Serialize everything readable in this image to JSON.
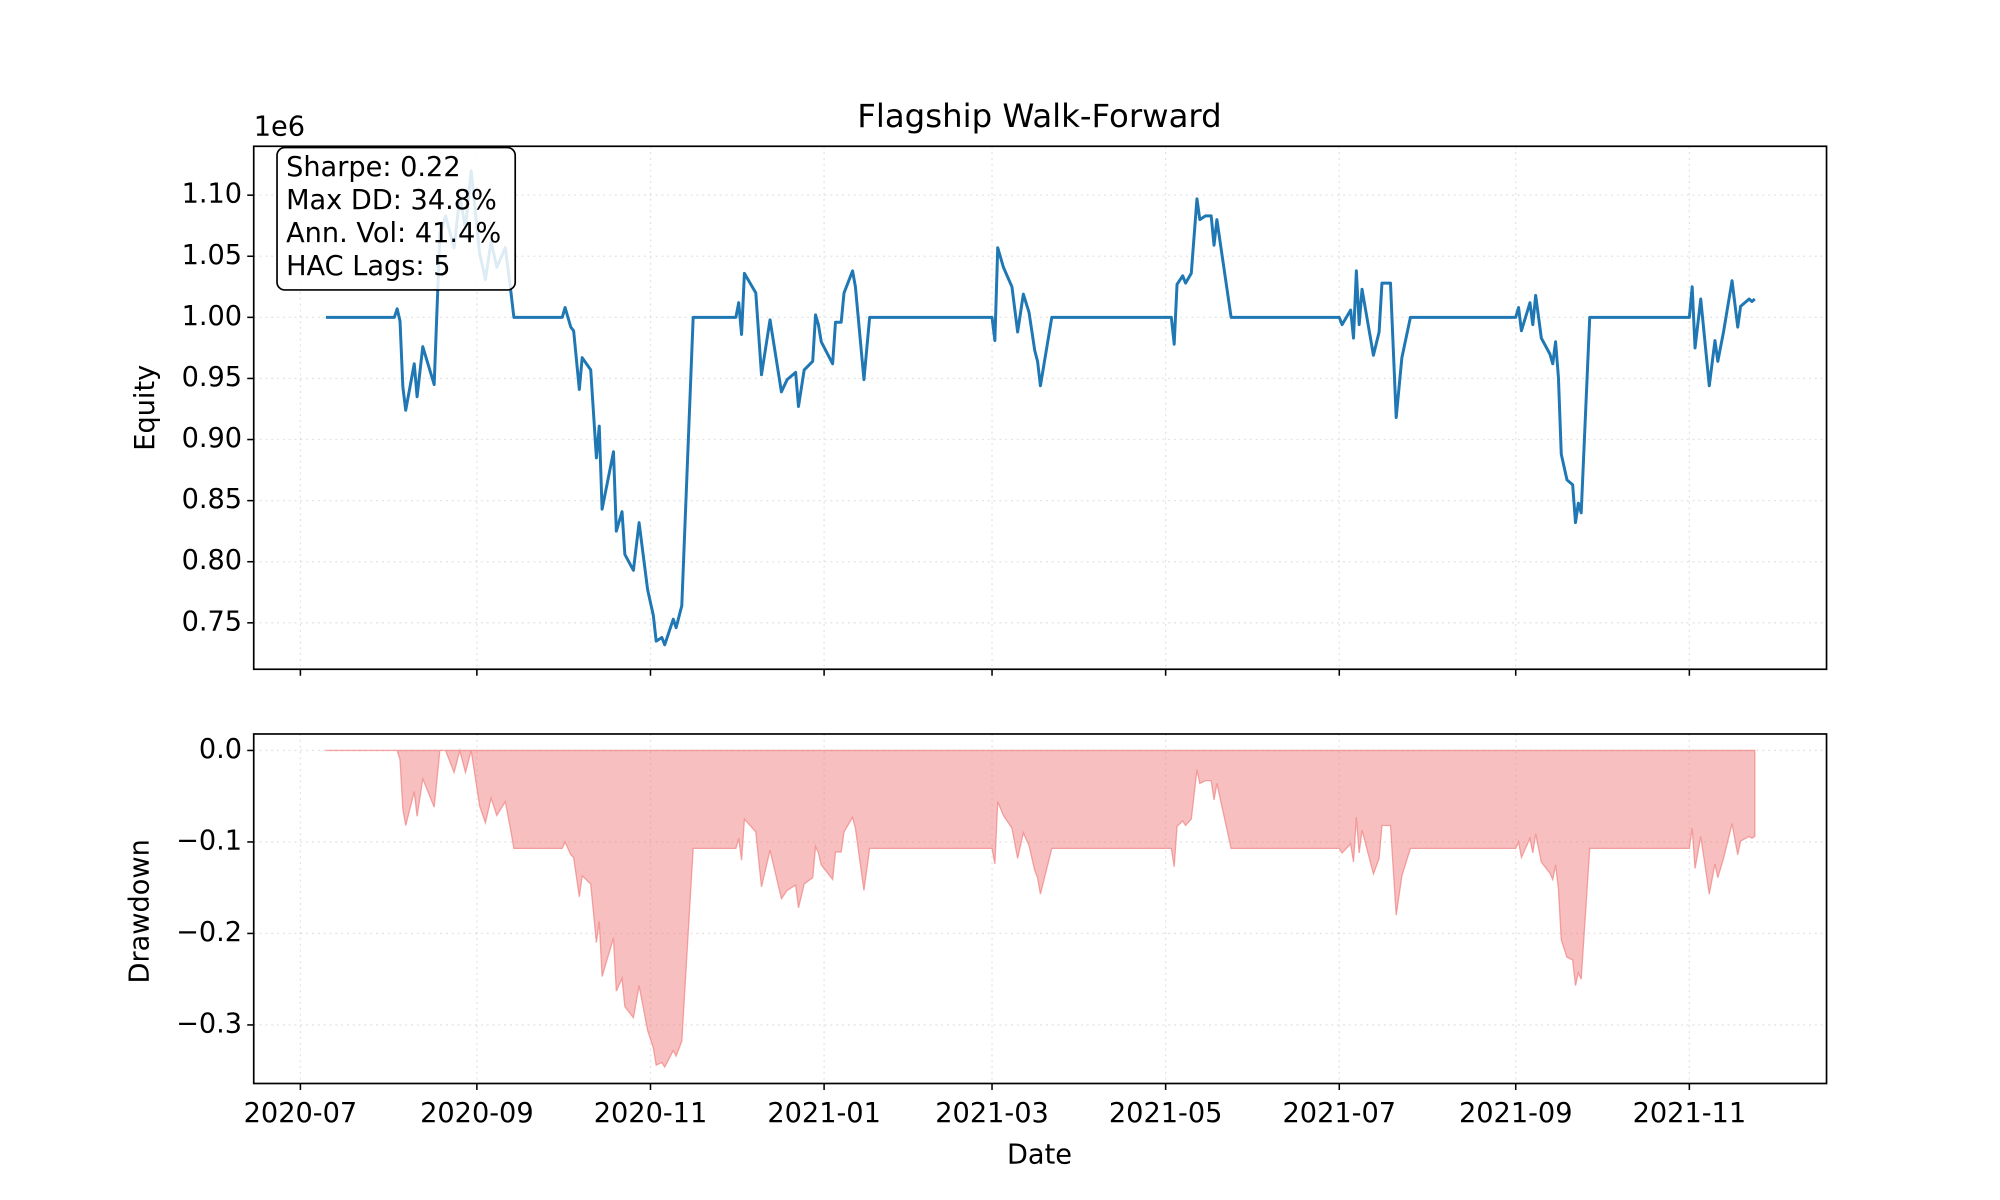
{
  "chart_data": [
    {
      "type": "line",
      "title": "Flagship Walk-Forward",
      "y_label": "Equity",
      "y_offset_label": "1e6",
      "color": "#1f77b4",
      "grid": true,
      "annotation": [
        "Sharpe: 0.22",
        "Max DD: 34.8%",
        "Ann. Vol: 41.4%",
        "HAC Lags: 5"
      ],
      "ylim": [
        0.712,
        1.14
      ],
      "yticks": [
        0.75,
        {
          "value": 0.8,
          "label": "0.80"
        },
        0.85,
        {
          "value": 0.9,
          "label": "0.90"
        },
        0.95,
        {
          "value": 1,
          "label": "1.00"
        },
        1.05,
        {
          "value": 1.1,
          "label": "1.10"
        }
      ],
      "x": [
        18453,
        18477,
        18478,
        18479,
        18480,
        18481,
        18484,
        18485,
        18487,
        18491,
        18493,
        18495,
        18498,
        18500,
        18502,
        18504,
        18507,
        18509,
        18511,
        18513,
        18516,
        18518,
        18519,
        18536,
        18537,
        18539,
        18540,
        18542,
        18543,
        18546,
        18548,
        18549,
        18550,
        18554,
        18555,
        18557,
        18558,
        18561,
        18563,
        18566,
        18568,
        18569,
        18571,
        18572,
        18575,
        18576,
        18578,
        18582,
        18597,
        18598,
        18599,
        18600,
        18604,
        18606,
        18609,
        18613,
        18615,
        18618,
        18619,
        18621,
        18624,
        18625,
        18626,
        18627,
        18631,
        18632,
        18634,
        18635,
        18638,
        18639,
        18642,
        18644,
        18687,
        18688,
        18689,
        18691,
        18694,
        18696,
        18698,
        18700,
        18702,
        18703,
        18704,
        18708,
        18750,
        18751,
        18752,
        18754,
        18755,
        18757,
        18759,
        18760,
        18762,
        18764,
        18765,
        18766,
        18771,
        18809,
        18810,
        18813,
        18814,
        18815,
        18816,
        18817,
        18819,
        18821,
        18823,
        18824,
        18827,
        18829,
        18831,
        18834,
        18871,
        18872,
        18873,
        18876,
        18877,
        18878,
        18880,
        18883,
        18884,
        18885,
        18886,
        18887,
        18889,
        18891,
        18892,
        18893,
        18894,
        18897,
        18932,
        18933,
        18934,
        18936,
        18939,
        18941,
        18942,
        18944,
        18947,
        18949,
        18950,
        18953,
        18954,
        18955
      ],
      "values": [
        1.0,
        1.0,
        1.007,
        0.997,
        0.943,
        0.924,
        0.962,
        0.935,
        0.976,
        0.945,
        1.068,
        1.083,
        1.057,
        1.099,
        1.073,
        1.12,
        1.052,
        1.031,
        1.062,
        1.041,
        1.057,
        1.02,
        1.0,
        1.0,
        1.008,
        0.992,
        0.989,
        0.941,
        0.967,
        0.957,
        0.885,
        0.911,
        0.843,
        0.89,
        0.825,
        0.841,
        0.806,
        0.793,
        0.832,
        0.777,
        0.756,
        0.735,
        0.738,
        0.732,
        0.753,
        0.746,
        0.764,
        1.0,
        1.0,
        1.012,
        0.986,
        1.036,
        1.02,
        0.953,
        0.998,
        0.939,
        0.949,
        0.955,
        0.927,
        0.957,
        0.964,
        1.002,
        0.994,
        0.98,
        0.962,
        0.996,
        0.996,
        1.02,
        1.038,
        1.025,
        0.949,
        1.0,
        1.0,
        0.981,
        1.057,
        1.041,
        1.025,
        0.988,
        1.019,
        1.004,
        0.973,
        0.964,
        0.944,
        1.0,
        1.0,
        0.978,
        1.027,
        1.034,
        1.028,
        1.036,
        1.097,
        1.08,
        1.083,
        1.083,
        1.059,
        1.08,
        1.0,
        1.0,
        0.994,
        1.006,
        0.983,
        1.038,
        0.994,
        1.023,
        0.996,
        0.969,
        0.988,
        1.028,
        1.028,
        0.918,
        0.967,
        1.0,
        1.0,
        1.008,
        0.989,
        1.012,
        0.994,
        1.018,
        0.983,
        0.97,
        0.962,
        0.98,
        0.951,
        0.888,
        0.867,
        0.863,
        0.832,
        0.848,
        0.84,
        1.0,
        1.0,
        1.025,
        0.975,
        1.015,
        0.944,
        0.981,
        0.964,
        0.988,
        1.03,
        0.992,
        1.009,
        1.015,
        1.013,
        1.015
      ]
    },
    {
      "type": "area",
      "y_label": "Drawdown",
      "x_label": "Date",
      "color": "#f08080",
      "opacity": 0.5,
      "grid": true,
      "ylim": [
        -0.364,
        0.018
      ],
      "yticks": [
        {
          "value": -0.3,
          "label": "−0.3"
        },
        {
          "value": -0.2,
          "label": "−0.2"
        },
        {
          "value": -0.1,
          "label": "−0.1"
        },
        {
          "value": 0,
          "label": "0.0"
        }
      ],
      "xlim": [
        18427.6,
        18980.2
      ],
      "xticks": [
        {
          "value": 18444,
          "label": "2020-07"
        },
        {
          "value": 18506,
          "label": "2020-09"
        },
        {
          "value": 18567,
          "label": "2020-11"
        },
        {
          "value": 18628,
          "label": "2021-01"
        },
        {
          "value": 18687,
          "label": "2021-03"
        },
        {
          "value": 18748,
          "label": "2021-05"
        },
        {
          "value": 18809,
          "label": "2021-07"
        },
        {
          "value": 18871,
          "label": "2021-09"
        },
        {
          "value": 18932,
          "label": "2021-11"
        }
      ],
      "x": [
        18453,
        18477,
        18478,
        18479,
        18480,
        18481,
        18484,
        18485,
        18487,
        18491,
        18493,
        18495,
        18498,
        18500,
        18502,
        18504,
        18507,
        18509,
        18511,
        18513,
        18516,
        18518,
        18519,
        18536,
        18537,
        18539,
        18540,
        18542,
        18543,
        18546,
        18548,
        18549,
        18550,
        18554,
        18555,
        18557,
        18558,
        18561,
        18563,
        18566,
        18568,
        18569,
        18571,
        18572,
        18575,
        18576,
        18578,
        18582,
        18597,
        18598,
        18599,
        18600,
        18604,
        18606,
        18609,
        18613,
        18615,
        18618,
        18619,
        18621,
        18624,
        18625,
        18626,
        18627,
        18631,
        18632,
        18634,
        18635,
        18638,
        18639,
        18642,
        18644,
        18687,
        18688,
        18689,
        18691,
        18694,
        18696,
        18698,
        18700,
        18702,
        18703,
        18704,
        18708,
        18750,
        18751,
        18752,
        18754,
        18755,
        18757,
        18759,
        18760,
        18762,
        18764,
        18765,
        18766,
        18771,
        18809,
        18810,
        18813,
        18814,
        18815,
        18816,
        18817,
        18819,
        18821,
        18823,
        18824,
        18827,
        18829,
        18831,
        18834,
        18871,
        18872,
        18873,
        18876,
        18877,
        18878,
        18880,
        18883,
        18884,
        18885,
        18886,
        18887,
        18889,
        18891,
        18892,
        18893,
        18894,
        18897,
        18932,
        18933,
        18934,
        18936,
        18939,
        18941,
        18942,
        18944,
        18947,
        18949,
        18950,
        18953,
        18954,
        18955
      ],
      "values": [
        0,
        0,
        0,
        -0.01,
        -0.064,
        -0.082,
        -0.045,
        -0.072,
        -0.031,
        -0.062,
        0,
        0,
        -0.024,
        0,
        -0.024,
        0,
        -0.061,
        -0.079,
        -0.052,
        -0.071,
        -0.056,
        -0.089,
        -0.107,
        -0.107,
        -0.1,
        -0.114,
        -0.117,
        -0.16,
        -0.137,
        -0.146,
        -0.21,
        -0.187,
        -0.247,
        -0.205,
        -0.263,
        -0.249,
        -0.28,
        -0.292,
        -0.257,
        -0.306,
        -0.325,
        -0.344,
        -0.341,
        -0.346,
        -0.328,
        -0.334,
        -0.318,
        -0.107,
        -0.107,
        -0.096,
        -0.12,
        -0.075,
        -0.089,
        -0.149,
        -0.109,
        -0.162,
        -0.153,
        -0.147,
        -0.172,
        -0.146,
        -0.139,
        -0.105,
        -0.112,
        -0.125,
        -0.141,
        -0.111,
        -0.111,
        -0.089,
        -0.073,
        -0.085,
        -0.153,
        -0.107,
        -0.107,
        -0.124,
        -0.056,
        -0.071,
        -0.085,
        -0.118,
        -0.09,
        -0.104,
        -0.131,
        -0.139,
        -0.157,
        -0.107,
        -0.107,
        -0.127,
        -0.083,
        -0.077,
        -0.082,
        -0.075,
        -0.021,
        -0.036,
        -0.033,
        -0.033,
        -0.054,
        -0.036,
        -0.107,
        -0.107,
        -0.112,
        -0.102,
        -0.122,
        -0.073,
        -0.112,
        -0.087,
        -0.111,
        -0.135,
        -0.118,
        -0.082,
        -0.082,
        -0.18,
        -0.137,
        -0.107,
        -0.107,
        -0.1,
        -0.117,
        -0.096,
        -0.112,
        -0.091,
        -0.122,
        -0.134,
        -0.141,
        -0.125,
        -0.151,
        -0.207,
        -0.226,
        -0.229,
        -0.257,
        -0.243,
        -0.25,
        -0.107,
        -0.107,
        -0.085,
        -0.129,
        -0.094,
        -0.157,
        -0.124,
        -0.139,
        -0.118,
        -0.08,
        -0.114,
        -0.099,
        -0.094,
        -0.096,
        -0.094
      ]
    }
  ]
}
